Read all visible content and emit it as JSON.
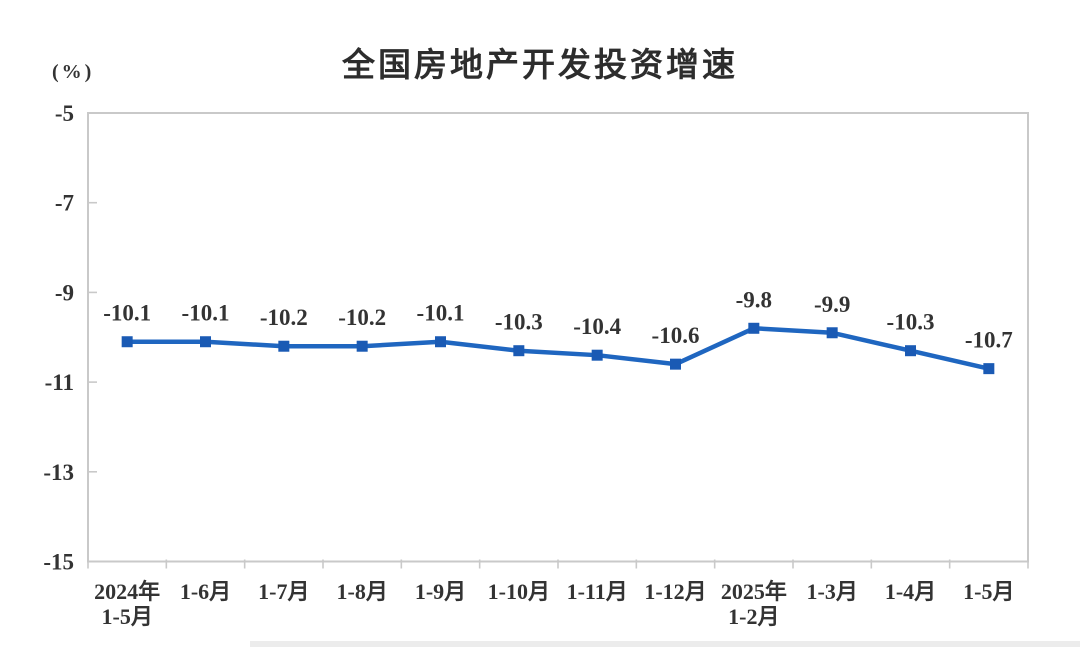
{
  "chart_data": {
    "type": "line",
    "title": "全国房地产开发投资增速",
    "unit_label": "(%)",
    "categories": [
      [
        "2024年",
        "1-5月"
      ],
      [
        "1-6月"
      ],
      [
        "1-7月"
      ],
      [
        "1-8月"
      ],
      [
        "1-9月"
      ],
      [
        "1-10月"
      ],
      [
        "1-11月"
      ],
      [
        "1-12月"
      ],
      [
        "2025年",
        "1-2月"
      ],
      [
        "1-3月"
      ],
      [
        "1-4月"
      ],
      [
        "1-5月"
      ]
    ],
    "values": [
      -10.1,
      -10.1,
      -10.2,
      -10.2,
      -10.1,
      -10.3,
      -10.4,
      -10.6,
      -9.8,
      -9.9,
      -10.3,
      -10.7
    ],
    "point_labels": [
      "-10.1",
      "-10.1",
      "-10.2",
      "-10.2",
      "-10.1",
      "-10.3",
      "-10.4",
      "-10.6",
      "-9.8",
      "-9.9",
      "-10.3",
      "-10.7"
    ],
    "xlabel": "",
    "ylabel": "(%)",
    "ylim": [
      -15,
      -5
    ],
    "yticks": [
      -5,
      -7,
      -9,
      -11,
      -13,
      -15
    ],
    "grid": false,
    "legend_position": "none",
    "marker_shape": "square",
    "line_color": "#1f66c0",
    "marker_color": "#1a5ab4",
    "axis_color": "#c9c9c9",
    "text_color": "#333333"
  }
}
